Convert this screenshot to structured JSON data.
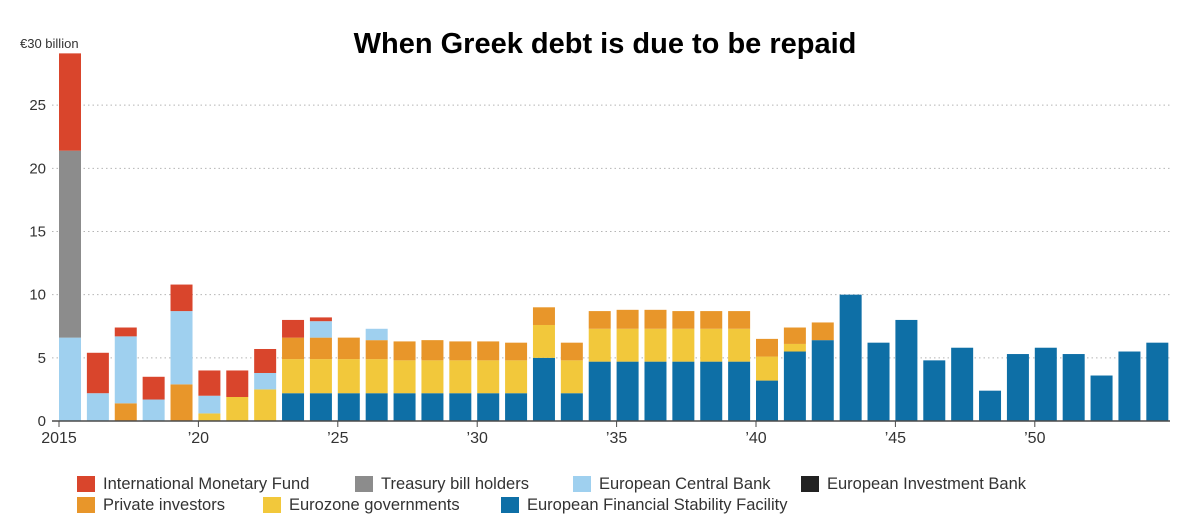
{
  "chart_data": {
    "type": "bar",
    "stacked": true,
    "title": "When Greek debt is due to be repaid",
    "y_unit_label": "€30 billion",
    "ylim": [
      0,
      30
    ],
    "yticks": [
      0,
      5,
      10,
      15,
      20,
      25
    ],
    "ytick_labels": [
      "0",
      "5",
      "10",
      "15",
      "20",
      "25"
    ],
    "x": [
      2015,
      2016,
      2017,
      2018,
      2019,
      2020,
      2021,
      2022,
      2023,
      2024,
      2025,
      2026,
      2027,
      2028,
      2029,
      2030,
      2031,
      2032,
      2033,
      2034,
      2035,
      2036,
      2037,
      2038,
      2039,
      2040,
      2041,
      2042,
      2043,
      2044,
      2045,
      2046,
      2047,
      2048,
      2049,
      2050,
      2051,
      2052,
      2053,
      2054
    ],
    "xticks": [
      {
        "year": 2015,
        "label": "2015"
      },
      {
        "year": 2020,
        "label": "’20"
      },
      {
        "year": 2025,
        "label": "’25"
      },
      {
        "year": 2030,
        "label": "’30"
      },
      {
        "year": 2035,
        "label": "’35"
      },
      {
        "year": 2040,
        "label": "’40"
      },
      {
        "year": 2045,
        "label": "’45"
      },
      {
        "year": 2050,
        "label": "’50"
      }
    ],
    "grid": "horizontal-dotted",
    "legend_position": "bottom",
    "series": [
      {
        "name": "European Financial Stability Facility",
        "color": "#0e6fa6",
        "values": [
          0,
          0,
          0,
          0,
          0,
          0,
          0,
          0,
          2.2,
          2.2,
          2.2,
          2.2,
          2.2,
          2.2,
          2.2,
          2.2,
          2.2,
          5.0,
          2.2,
          4.7,
          4.7,
          4.7,
          4.7,
          4.7,
          4.7,
          3.2,
          5.5,
          6.4,
          10.0,
          6.2,
          8.0,
          4.8,
          5.8,
          2.4,
          5.3,
          5.8,
          5.3,
          3.6,
          5.5,
          6.2
        ]
      },
      {
        "name": "Eurozone governments",
        "color": "#f2c83b",
        "values": [
          0,
          0,
          0,
          0,
          0,
          0.6,
          1.9,
          2.5,
          2.7,
          2.7,
          2.7,
          2.7,
          2.6,
          2.6,
          2.6,
          2.6,
          2.6,
          2.6,
          2.6,
          2.6,
          2.6,
          2.6,
          2.6,
          2.6,
          2.6,
          1.9,
          0.6,
          0,
          0,
          0,
          0,
          0,
          0,
          0,
          0,
          0,
          0,
          0,
          0,
          0
        ]
      },
      {
        "name": "Private investors",
        "color": "#e8962a",
        "values": [
          0,
          0,
          1.4,
          0,
          2.9,
          0,
          0,
          0,
          1.7,
          1.7,
          1.7,
          1.5,
          1.5,
          1.6,
          1.5,
          1.5,
          1.4,
          1.4,
          1.4,
          1.4,
          1.5,
          1.5,
          1.4,
          1.4,
          1.4,
          1.4,
          1.3,
          1.4,
          0,
          0,
          0,
          0,
          0,
          0,
          0,
          0,
          0,
          0,
          0,
          0
        ]
      },
      {
        "name": "European Central Bank",
        "color": "#9fd0ef",
        "values": [
          6.6,
          2.2,
          5.3,
          1.7,
          5.8,
          1.4,
          0,
          1.3,
          0,
          1.3,
          0,
          0.9,
          0,
          0,
          0,
          0,
          0,
          0,
          0,
          0,
          0,
          0,
          0,
          0,
          0,
          0,
          0,
          0,
          0,
          0,
          0,
          0,
          0,
          0,
          0,
          0,
          0,
          0,
          0,
          0
        ]
      },
      {
        "name": "European Investment Bank",
        "color": "#222222",
        "values": [
          0,
          0,
          0,
          0,
          0,
          0,
          0,
          0,
          0,
          0,
          0,
          0,
          0,
          0,
          0,
          0,
          0,
          0,
          0,
          0,
          0,
          0,
          0,
          0,
          0,
          0,
          0,
          0,
          0,
          0,
          0,
          0,
          0,
          0,
          0,
          0,
          0,
          0,
          0,
          0
        ]
      },
      {
        "name": "Treasury bill holders",
        "color": "#8c8c8c",
        "values": [
          14.8,
          0,
          0,
          0,
          0,
          0,
          0,
          0,
          0,
          0,
          0,
          0,
          0,
          0,
          0,
          0,
          0,
          0,
          0,
          0,
          0,
          0,
          0,
          0,
          0,
          0,
          0,
          0,
          0,
          0,
          0,
          0,
          0,
          0,
          0,
          0,
          0,
          0,
          0,
          0
        ]
      },
      {
        "name": "International Monetary Fund",
        "color": "#d9452c",
        "values": [
          7.7,
          3.2,
          0.7,
          1.8,
          2.1,
          2.0,
          2.1,
          1.9,
          1.4,
          0.3,
          0,
          0,
          0,
          0,
          0,
          0,
          0,
          0,
          0,
          0,
          0,
          0,
          0,
          0,
          0,
          0,
          0,
          0,
          0,
          0,
          0,
          0,
          0,
          0,
          0,
          0,
          0,
          0,
          0,
          0
        ]
      }
    ],
    "legend_rows": [
      [
        "International Monetary Fund",
        "Treasury bill holders",
        "European Central Bank",
        "European Investment Bank"
      ],
      [
        "Private investors",
        "Eurozone governments",
        "European Financial Stability Facility"
      ]
    ]
  }
}
